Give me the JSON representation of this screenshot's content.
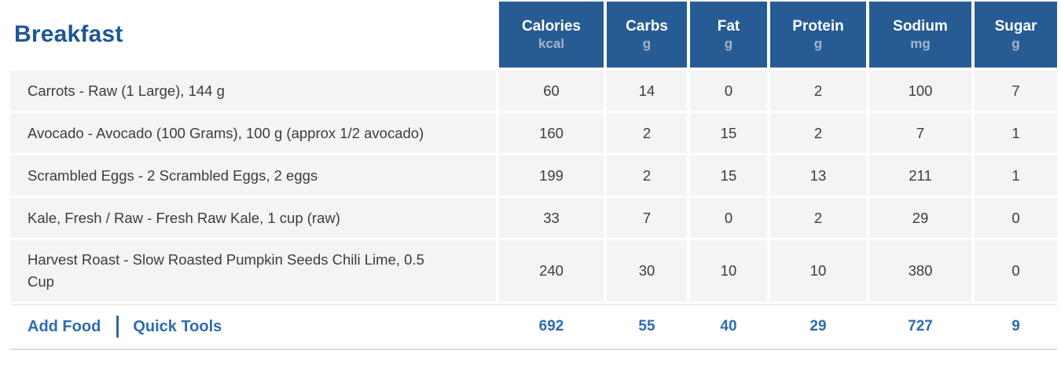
{
  "meal": {
    "title": "Breakfast"
  },
  "columns": [
    {
      "label": "Calories",
      "unit": "kcal"
    },
    {
      "label": "Carbs",
      "unit": "g"
    },
    {
      "label": "Fat",
      "unit": "g"
    },
    {
      "label": "Protein",
      "unit": "g"
    },
    {
      "label": "Sodium",
      "unit": "mg"
    },
    {
      "label": "Sugar",
      "unit": "g"
    }
  ],
  "rows": [
    {
      "name": "Carrots - Raw (1 Large), 144 g",
      "values": [
        "60",
        "14",
        "0",
        "2",
        "100",
        "7"
      ]
    },
    {
      "name": "Avocado - Avocado (100 Grams), 100 g (approx 1/2 avocado)",
      "values": [
        "160",
        "2",
        "15",
        "2",
        "7",
        "1"
      ]
    },
    {
      "name": "Scrambled Eggs - 2 Scrambled Eggs, 2 eggs",
      "values": [
        "199",
        "2",
        "15",
        "13",
        "211",
        "1"
      ]
    },
    {
      "name": "Kale, Fresh / Raw - Fresh Raw Kale, 1 cup (raw)",
      "values": [
        "33",
        "7",
        "0",
        "2",
        "29",
        "0"
      ]
    },
    {
      "name": "Harvest Roast - Slow Roasted Pumpkin Seeds Chili Lime, 0.5 Cup",
      "values": [
        "240",
        "30",
        "10",
        "10",
        "380",
        "0"
      ]
    }
  ],
  "footer": {
    "add_food_label": "Add Food",
    "quick_tools_label": "Quick Tools",
    "totals": [
      "692",
      "55",
      "40",
      "29",
      "727",
      "9"
    ]
  },
  "colors": {
    "header_bg": "#275b94",
    "header_unit_text": "#a4b5cb",
    "title_text": "#1d5795",
    "link_text": "#2d6bb1",
    "row_bg": "#f4f4f4"
  }
}
